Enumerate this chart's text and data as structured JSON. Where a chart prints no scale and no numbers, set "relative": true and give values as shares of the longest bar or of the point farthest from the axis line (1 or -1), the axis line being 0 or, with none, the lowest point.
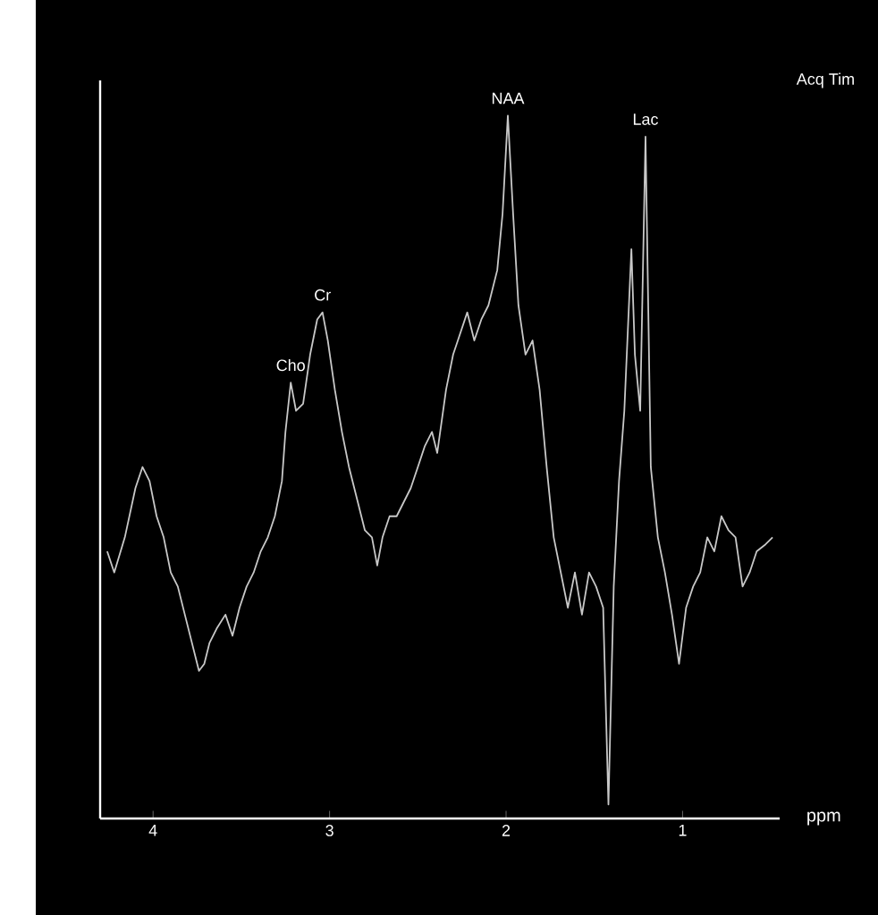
{
  "chart_data": {
    "type": "line",
    "relative": true,
    "xlabel": "ppm",
    "xlim": [
      4.3,
      0.45
    ],
    "xticks": [
      4,
      3,
      2,
      1
    ],
    "grid": false,
    "marker": "none",
    "line_style": "solid",
    "annotations": [
      {
        "text": "NAA",
        "x": 1.99,
        "y": 1
      },
      {
        "text": "Lac",
        "x": 1.21,
        "y": 0.97
      },
      {
        "text": "Cr",
        "x": 3.04,
        "y": 0.72
      },
      {
        "text": "Cho",
        "x": 3.22,
        "y": 0.62
      },
      "Acq Tim"
    ],
    "series": [
      {
        "color": "#c8c8c8",
        "x": [
          4.26,
          4.22,
          4.16,
          4.1,
          4.06,
          4.02,
          3.98,
          3.94,
          3.9,
          3.86,
          3.82,
          3.78,
          3.74,
          3.71,
          3.68,
          3.64,
          3.59,
          3.55,
          3.51,
          3.47,
          3.43,
          3.39,
          3.35,
          3.31,
          3.27,
          3.25,
          3.22,
          3.19,
          3.15,
          3.11,
          3.07,
          3.04,
          3.01,
          2.97,
          2.93,
          2.89,
          2.84,
          2.8,
          2.76,
          2.73,
          2.7,
          2.66,
          2.62,
          2.58,
          2.54,
          2.5,
          2.46,
          2.42,
          2.39,
          2.34,
          2.3,
          2.26,
          2.22,
          2.18,
          2.14,
          2.1,
          2.05,
          2.02,
          1.99,
          1.96,
          1.93,
          1.89,
          1.85,
          1.81,
          1.77,
          1.73,
          1.69,
          1.65,
          1.61,
          1.57,
          1.53,
          1.49,
          1.45,
          1.42,
          1.39,
          1.36,
          1.33,
          1.29,
          1.27,
          1.24,
          1.21,
          1.18,
          1.14,
          1.1,
          1.06,
          1.02,
          0.98,
          0.94,
          0.9,
          0.86,
          0.82,
          0.78,
          0.74,
          0.7,
          0.66,
          0.62,
          0.58,
          0.53,
          0.49
        ],
        "values": [
          0.38,
          0.35,
          0.4,
          0.47,
          0.5,
          0.48,
          0.43,
          0.4,
          0.35,
          0.33,
          0.29,
          0.25,
          0.21,
          0.22,
          0.25,
          0.27,
          0.29,
          0.26,
          0.3,
          0.33,
          0.35,
          0.38,
          0.4,
          0.43,
          0.48,
          0.55,
          0.62,
          0.58,
          0.59,
          0.66,
          0.71,
          0.72,
          0.68,
          0.61,
          0.55,
          0.5,
          0.45,
          0.41,
          0.4,
          0.36,
          0.4,
          0.43,
          0.43,
          0.45,
          0.47,
          0.5,
          0.53,
          0.55,
          0.52,
          0.61,
          0.66,
          0.69,
          0.72,
          0.68,
          0.71,
          0.73,
          0.78,
          0.86,
          1,
          0.86,
          0.73,
          0.66,
          0.68,
          0.61,
          0.5,
          0.4,
          0.35,
          0.3,
          0.35,
          0.29,
          0.35,
          0.33,
          0.3,
          0.02,
          0.33,
          0.48,
          0.58,
          0.81,
          0.66,
          0.58,
          0.97,
          0.5,
          0.4,
          0.35,
          0.29,
          0.22,
          0.3,
          0.33,
          0.35,
          0.4,
          0.38,
          0.43,
          0.41,
          0.4,
          0.33,
          0.35,
          0.38,
          0.39,
          0.4
        ]
      }
    ]
  }
}
